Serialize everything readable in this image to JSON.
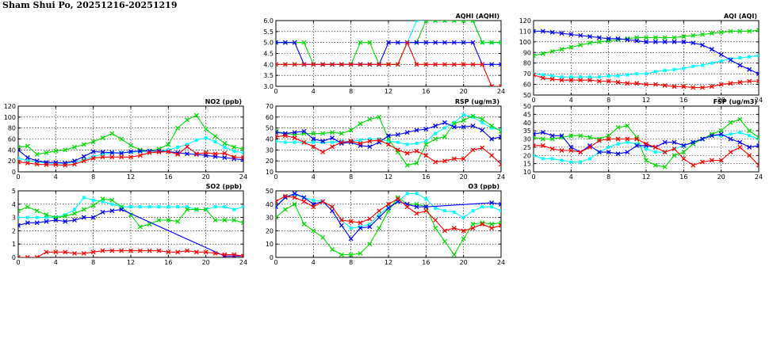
{
  "page": {
    "title": "Sham Shui Po, 20251216-20251219"
  },
  "chart_data": [
    {
      "id": "aqhi",
      "type": "line",
      "title": "AQHI (AQHI)",
      "xlim": [
        0,
        24
      ],
      "xticks": [
        0,
        4,
        8,
        12,
        16,
        20,
        24
      ],
      "ylim": [
        3.0,
        6.0
      ],
      "yticks": [
        "3.0",
        "3.5",
        "4.0",
        "4.5",
        "5.0",
        "5.5",
        "6.0"
      ],
      "grid": true,
      "x": [
        0,
        1,
        2,
        3,
        4,
        5,
        6,
        7,
        8,
        9,
        10,
        11,
        12,
        13,
        14,
        15,
        16,
        17,
        18,
        19,
        20,
        21,
        22,
        23,
        24
      ],
      "series": [
        {
          "color": "#00ffff",
          "marker": "square",
          "values": [
            4,
            4,
            4,
            4,
            4,
            4,
            4,
            4,
            4,
            4,
            4,
            4,
            4,
            4,
            5,
            6,
            6,
            6,
            6,
            6,
            6,
            6,
            5,
            5,
            5
          ]
        },
        {
          "color": "#00dd00",
          "marker": "x",
          "values": [
            5,
            5,
            5,
            5,
            4,
            4,
            4,
            4,
            4,
            5,
            5,
            4,
            4,
            4,
            5,
            5,
            6,
            6,
            6,
            6,
            6,
            6,
            5,
            5,
            5
          ]
        },
        {
          "color": "#0000ff",
          "marker": "x",
          "values": [
            5,
            5,
            5,
            4,
            4,
            4,
            4,
            4,
            4,
            4,
            4,
            4,
            5,
            5,
            5,
            5,
            5,
            5,
            5,
            5,
            5,
            5,
            4,
            4,
            4
          ]
        },
        {
          "color": "#ff0000",
          "marker": "x",
          "values": [
            4,
            4,
            4,
            4,
            4,
            4,
            4,
            4,
            4,
            4,
            4,
            4,
            4,
            4,
            5,
            4,
            4,
            4,
            4,
            4,
            4,
            4,
            4,
            3,
            3
          ]
        }
      ]
    },
    {
      "id": "aqi",
      "type": "line",
      "title": "AQI (AQI)",
      "xlim": [
        0,
        24
      ],
      "xticks": [
        0,
        4,
        8,
        12,
        16,
        20,
        24
      ],
      "ylim": [
        50,
        120
      ],
      "yticks": [
        "50",
        "60",
        "70",
        "80",
        "90",
        "100",
        "110",
        "120"
      ],
      "grid": true,
      "x": [
        0,
        1,
        2,
        3,
        4,
        5,
        6,
        7,
        8,
        9,
        10,
        11,
        12,
        13,
        14,
        15,
        16,
        17,
        18,
        19,
        20,
        21,
        22,
        23,
        24
      ],
      "series": [
        {
          "color": "#00ffff",
          "marker": "square",
          "values": [
            70,
            69,
            68,
            67,
            67,
            67,
            67,
            67,
            68,
            68,
            69,
            70,
            70,
            72,
            73,
            74,
            75,
            77,
            78,
            80,
            82,
            84,
            85,
            86,
            87
          ]
        },
        {
          "color": "#00dd00",
          "marker": "x",
          "values": [
            87,
            89,
            91,
            93,
            95,
            97,
            99,
            100,
            101,
            102,
            103,
            104,
            104,
            104,
            104,
            104,
            105,
            106,
            107,
            108,
            109,
            110,
            110,
            110,
            111
          ]
        },
        {
          "color": "#0000ff",
          "marker": "x",
          "values": [
            110,
            110,
            109,
            108,
            107,
            106,
            105,
            104,
            103,
            103,
            102,
            101,
            100,
            100,
            100,
            100,
            100,
            99,
            97,
            93,
            88,
            83,
            78,
            74,
            70
          ]
        },
        {
          "color": "#ff0000",
          "marker": "x",
          "values": [
            69,
            66,
            65,
            64,
            64,
            64,
            64,
            63,
            63,
            62,
            61,
            61,
            60,
            60,
            59,
            58,
            58,
            57,
            57,
            58,
            60,
            61,
            62,
            63,
            63
          ]
        }
      ]
    },
    {
      "id": "no2",
      "type": "line",
      "title": "NO2 (ppb)",
      "xlim": [
        0,
        24
      ],
      "xticks": [
        0,
        4,
        8,
        12,
        16,
        20,
        24
      ],
      "ylim": [
        0,
        120
      ],
      "yticks": [
        "0",
        "20",
        "40",
        "60",
        "80",
        "100",
        "120"
      ],
      "grid": true,
      "x": [
        0,
        1,
        2,
        3,
        4,
        5,
        6,
        7,
        8,
        9,
        10,
        11,
        12,
        13,
        14,
        15,
        16,
        17,
        18,
        19,
        20,
        21,
        22,
        23,
        24
      ],
      "series": [
        {
          "color": "#00ffff",
          "marker": "square",
          "values": [
            25,
            21,
            18,
            16,
            16,
            15,
            18,
            22,
            28,
            32,
            35,
            35,
            36,
            37,
            38,
            38,
            40,
            45,
            50,
            58,
            62,
            55,
            45,
            38,
            35
          ]
        },
        {
          "color": "#00dd00",
          "marker": "x",
          "values": [
            45,
            47,
            32,
            35,
            38,
            40,
            45,
            50,
            55,
            62,
            70,
            60,
            48,
            40,
            38,
            42,
            50,
            80,
            95,
            103,
            78,
            65,
            52,
            45,
            42
          ]
        },
        {
          "color": "#0000ff",
          "marker": "x",
          "values": [
            40,
            26,
            20,
            17,
            17,
            16,
            20,
            28,
            37,
            36,
            35,
            34,
            37,
            38,
            38,
            38,
            37,
            35,
            33,
            32,
            30,
            28,
            26,
            24,
            22
          ]
        },
        {
          "color": "#ff0000",
          "marker": "x",
          "values": [
            18,
            16,
            14,
            13,
            13,
            12,
            14,
            20,
            25,
            27,
            27,
            27,
            27,
            30,
            35,
            36,
            37,
            32,
            46,
            33,
            35,
            33,
            34,
            27,
            26
          ]
        }
      ]
    },
    {
      "id": "rsp",
      "type": "line",
      "title": "RSP (ug/m3)",
      "xlim": [
        0,
        24
      ],
      "xticks": [
        0,
        4,
        8,
        12,
        16,
        20,
        24
      ],
      "ylim": [
        10,
        70
      ],
      "yticks": [
        "10",
        "20",
        "30",
        "40",
        "50",
        "60",
        "70"
      ],
      "grid": true,
      "x": [
        0,
        1,
        2,
        3,
        4,
        5,
        6,
        7,
        8,
        9,
        10,
        11,
        12,
        13,
        14,
        15,
        16,
        17,
        18,
        19,
        20,
        21,
        22,
        23,
        24
      ],
      "series": [
        {
          "color": "#00ffff",
          "marker": "square",
          "values": [
            38,
            37,
            37,
            37,
            37,
            37,
            37,
            38,
            38,
            39,
            40,
            40,
            38,
            37,
            35,
            36,
            38,
            45,
            50,
            55,
            62,
            60,
            55,
            50,
            48
          ]
        },
        {
          "color": "#00dd00",
          "marker": "x",
          "values": [
            47,
            45,
            44,
            45,
            45,
            45,
            46,
            45,
            48,
            54,
            58,
            60,
            40,
            28,
            16,
            18,
            35,
            40,
            42,
            54,
            57,
            61,
            58,
            52,
            47
          ]
        },
        {
          "color": "#0000ff",
          "marker": "x",
          "values": [
            46,
            45,
            46,
            47,
            40,
            38,
            41,
            36,
            37,
            34,
            33,
            37,
            43,
            44,
            46,
            48,
            49,
            52,
            55,
            51,
            51,
            52,
            48,
            40,
            42
          ]
        },
        {
          "color": "#ff0000",
          "marker": "x",
          "values": [
            42,
            43,
            41,
            37,
            33,
            28,
            33,
            37,
            38,
            36,
            38,
            39,
            35,
            30,
            27,
            29,
            25,
            19,
            20,
            22,
            22,
            30,
            32,
            25,
            17
          ]
        }
      ]
    },
    {
      "id": "fsp",
      "type": "line",
      "title": "FSP (ug/m3)",
      "xlim": [
        0,
        24
      ],
      "xticks": [
        0,
        4,
        8,
        12,
        16,
        20,
        24
      ],
      "ylim": [
        10,
        50
      ],
      "yticks": [
        "10",
        "15",
        "20",
        "25",
        "30",
        "35",
        "40",
        "45",
        "50"
      ],
      "grid": true,
      "x": [
        0,
        1,
        2,
        3,
        4,
        5,
        6,
        7,
        8,
        9,
        10,
        11,
        12,
        13,
        14,
        15,
        16,
        17,
        18,
        19,
        20,
        21,
        22,
        23,
        24
      ],
      "series": [
        {
          "color": "#00ffff",
          "marker": "square",
          "values": [
            20,
            18,
            18,
            17,
            16,
            16,
            18,
            22,
            25,
            27,
            28,
            27,
            24,
            22,
            22,
            24,
            26,
            28,
            30,
            32,
            32,
            33,
            34,
            32,
            30
          ]
        },
        {
          "color": "#00dd00",
          "marker": "x",
          "values": [
            31,
            30,
            30,
            31,
            32,
            32,
            31,
            30,
            32,
            37,
            38,
            31,
            17,
            14,
            13,
            20,
            22,
            27,
            30,
            33,
            35,
            40,
            42,
            35,
            31
          ]
        },
        {
          "color": "#0000ff",
          "marker": "x",
          "values": [
            33,
            34,
            32,
            32,
            25,
            22,
            26,
            22,
            22,
            21,
            22,
            26,
            26,
            25,
            28,
            28,
            26,
            28,
            30,
            32,
            33,
            30,
            28,
            25,
            26
          ]
        },
        {
          "color": "#ff0000",
          "marker": "x",
          "values": [
            26,
            26,
            24,
            23,
            23,
            22,
            25,
            29,
            30,
            30,
            30,
            30,
            27,
            25,
            22,
            24,
            18,
            14,
            16,
            17,
            17,
            22,
            25,
            20,
            14
          ]
        }
      ]
    },
    {
      "id": "so2",
      "type": "line",
      "title": "SO2 (ppb)",
      "xlim": [
        0,
        24
      ],
      "xticks": [
        0,
        4,
        8,
        12,
        16,
        20,
        24
      ],
      "ylim": [
        0,
        5
      ],
      "yticks": [
        "0",
        "1",
        "2",
        "3",
        "4",
        "5"
      ],
      "grid": true,
      "x": [
        0,
        1,
        2,
        3,
        4,
        5,
        6,
        7,
        8,
        9,
        10,
        11,
        12,
        13,
        14,
        15,
        16,
        17,
        18,
        19,
        20,
        21,
        22,
        23,
        24
      ],
      "series": [
        {
          "color": "#00ffff",
          "marker": "square",
          "values": [
            3.0,
            3.0,
            3.0,
            3.0,
            3.0,
            3.2,
            3.6,
            4.5,
            4.3,
            4.2,
            4.0,
            3.8,
            3.8,
            3.8,
            3.8,
            3.8,
            3.8,
            3.8,
            3.8,
            3.6,
            3.6,
            3.8,
            3.8,
            3.6,
            3.8
          ]
        },
        {
          "color": "#00dd00",
          "marker": "x",
          "values": [
            3.5,
            3.8,
            3.5,
            3.2,
            3.0,
            3.1,
            3.3,
            3.6,
            3.9,
            4.4,
            4.3,
            3.8,
            3.2,
            2.3,
            2.5,
            2.8,
            2.8,
            2.7,
            3.6,
            3.6,
            3.6,
            2.8,
            2.8,
            2.8,
            2.6
          ]
        },
        {
          "color": "#0000ff",
          "marker": "x",
          "values": [
            2.4,
            2.6,
            2.6,
            2.7,
            2.8,
            2.7,
            2.8,
            3.0,
            3.0,
            3.4,
            3.5,
            3.6,
            null,
            null,
            null,
            null,
            null,
            null,
            null,
            null,
            null,
            null,
            0.1,
            0.1,
            0.1
          ]
        },
        {
          "color": "#ff0000",
          "marker": "x",
          "values": [
            0.0,
            0.0,
            0.0,
            0.4,
            0.4,
            0.4,
            0.3,
            0.3,
            0.4,
            0.5,
            0.5,
            0.5,
            0.5,
            0.5,
            0.5,
            0.5,
            0.4,
            0.4,
            0.5,
            0.4,
            0.4,
            0.3,
            0.2,
            0.2,
            0.1
          ]
        }
      ]
    },
    {
      "id": "o3",
      "type": "line",
      "title": "O3 (ppb)",
      "xlim": [
        0,
        24
      ],
      "xticks": [
        0,
        4,
        8,
        12,
        16,
        20,
        24
      ],
      "ylim": [
        0,
        50
      ],
      "yticks": [
        "0",
        "10",
        "20",
        "30",
        "40",
        "50"
      ],
      "grid": true,
      "x": [
        0,
        1,
        2,
        3,
        4,
        5,
        6,
        7,
        8,
        9,
        10,
        11,
        12,
        13,
        14,
        15,
        16,
        17,
        18,
        19,
        20,
        21,
        22,
        23,
        24
      ],
      "series": [
        {
          "color": "#00ffff",
          "marker": "square",
          "values": [
            38,
            46,
            47,
            45,
            43,
            42,
            38,
            28,
            22,
            23,
            25,
            32,
            38,
            42,
            48,
            48,
            44,
            37,
            35,
            34,
            30,
            35,
            38,
            38,
            35
          ]
        },
        {
          "color": "#00dd00",
          "marker": "x",
          "values": [
            30,
            36,
            40,
            25,
            20,
            15,
            6,
            2,
            2,
            3,
            10,
            22,
            35,
            45,
            40,
            40,
            38,
            22,
            12,
            2,
            14,
            25,
            26,
            25,
            26
          ]
        },
        {
          "color": "#0000ff",
          "marker": "x",
          "values": [
            38,
            45,
            48,
            45,
            40,
            42,
            35,
            24,
            14,
            22,
            23,
            30,
            37,
            42,
            40,
            38,
            38,
            null,
            null,
            null,
            null,
            null,
            null,
            41,
            40
          ]
        },
        {
          "color": "#ff0000",
          "marker": "x",
          "values": [
            42,
            46,
            45,
            42,
            38,
            42,
            38,
            28,
            27,
            26,
            29,
            35,
            40,
            44,
            38,
            33,
            35,
            28,
            20,
            22,
            20,
            22,
            25,
            22,
            24
          ]
        }
      ]
    }
  ]
}
